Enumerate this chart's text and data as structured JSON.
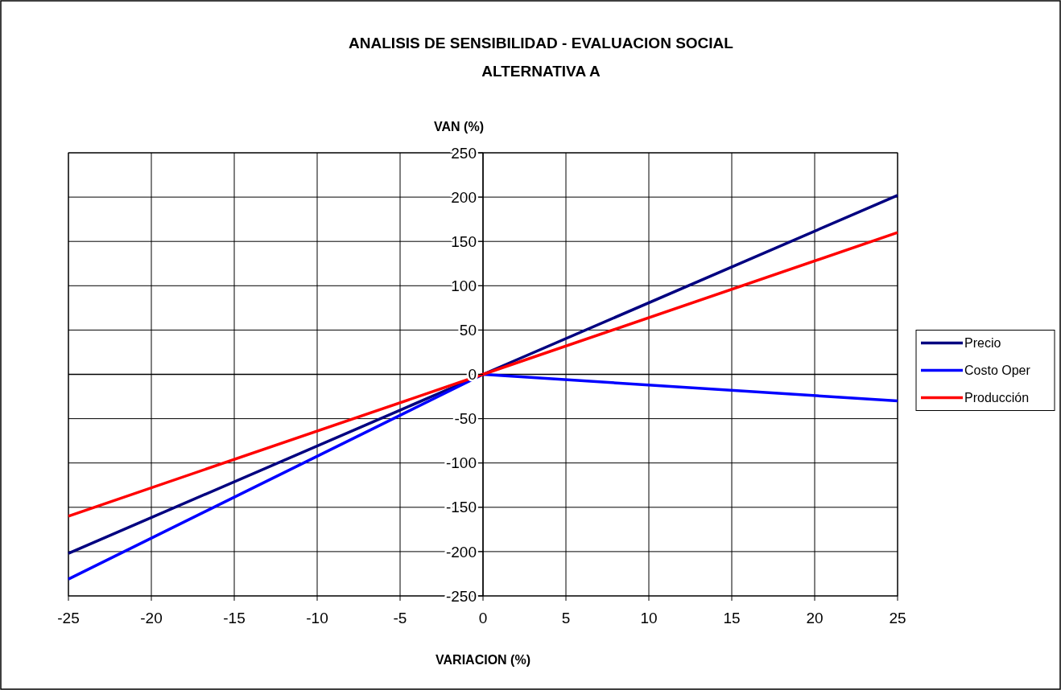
{
  "chart_data": {
    "type": "line",
    "title": "ANALISIS DE SENSIBILIDAD - EVALUACION SOCIAL",
    "subtitle": "ALTERNATIVA A",
    "xlabel": "VARIACION (%)",
    "ylabel": "VAN (%)",
    "x": [
      -25,
      0,
      25
    ],
    "series": [
      {
        "name": "Precio",
        "color": "#000080",
        "values": [
          -202,
          0,
          202
        ]
      },
      {
        "name": "Costo Oper",
        "color": "#0000ff",
        "values": [
          -231,
          0,
          -30
        ]
      },
      {
        "name": "Producción",
        "color": "#ff0000",
        "values": [
          -160,
          0,
          160
        ]
      }
    ],
    "xlim": [
      -25,
      25
    ],
    "xticks": [
      -25,
      -20,
      -15,
      -10,
      -5,
      0,
      5,
      10,
      15,
      20,
      25
    ],
    "ylim": [
      -250,
      250
    ],
    "yticks": [
      -250,
      -200,
      -150,
      -100,
      -50,
      0,
      50,
      100,
      150,
      200,
      250
    ],
    "grid": true,
    "legend": "right",
    "marker": "none",
    "line_style": "solid"
  }
}
